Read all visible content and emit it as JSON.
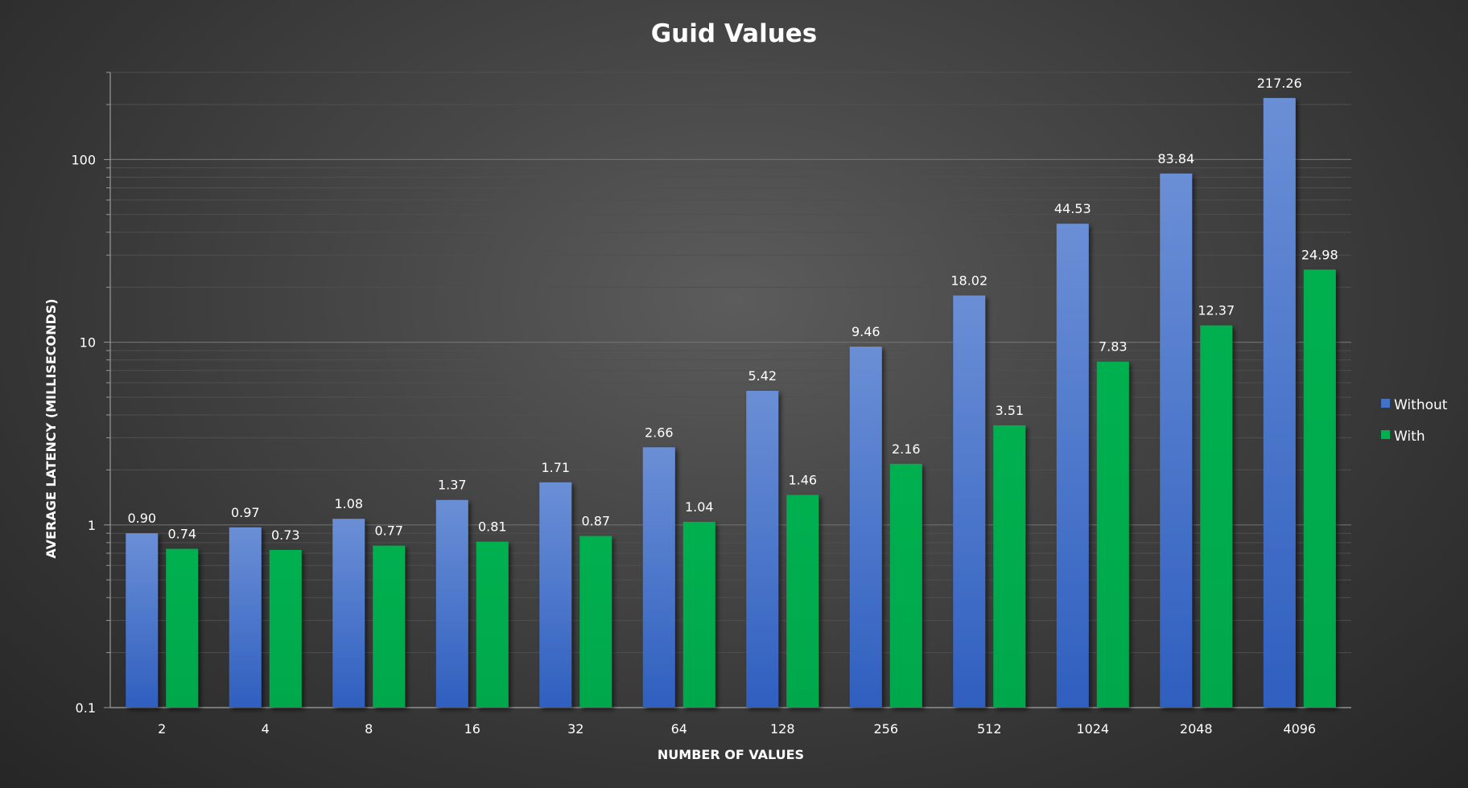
{
  "chart_data": {
    "type": "bar",
    "title": "Guid Values",
    "xlabel": "NUMBER OF VALUES",
    "ylabel": "AVERAGE LATENCY  (MILLISECONDS)",
    "yscale": "log",
    "ylim": [
      0.1,
      300
    ],
    "yticks": [
      "0.1",
      "1",
      "10",
      "100"
    ],
    "grid": true,
    "legend_position": "right",
    "categories": [
      "2",
      "4",
      "8",
      "16",
      "32",
      "64",
      "128",
      "256",
      "512",
      "1024",
      "2048",
      "4096"
    ],
    "series": [
      {
        "name": "Without",
        "color": "#4472c4",
        "values": [
          0.9,
          0.97,
          1.08,
          1.37,
          1.71,
          2.66,
          5.42,
          9.46,
          18.02,
          44.53,
          83.84,
          217.26
        ],
        "labels": [
          "0.90",
          "0.97",
          "1.08",
          "1.37",
          "1.71",
          "2.66",
          "5.42",
          "9.46",
          "18.02",
          "44.53",
          "83.84",
          "217.26"
        ]
      },
      {
        "name": "With",
        "color": "#00b050",
        "values": [
          0.74,
          0.73,
          0.77,
          0.81,
          0.87,
          1.04,
          1.46,
          2.16,
          3.51,
          7.83,
          12.37,
          24.98
        ],
        "labels": [
          "0.74",
          "0.73",
          "0.77",
          "0.81",
          "0.87",
          "1.04",
          "1.46",
          "2.16",
          "3.51",
          "7.83",
          "12.37",
          "24.98"
        ]
      }
    ]
  }
}
